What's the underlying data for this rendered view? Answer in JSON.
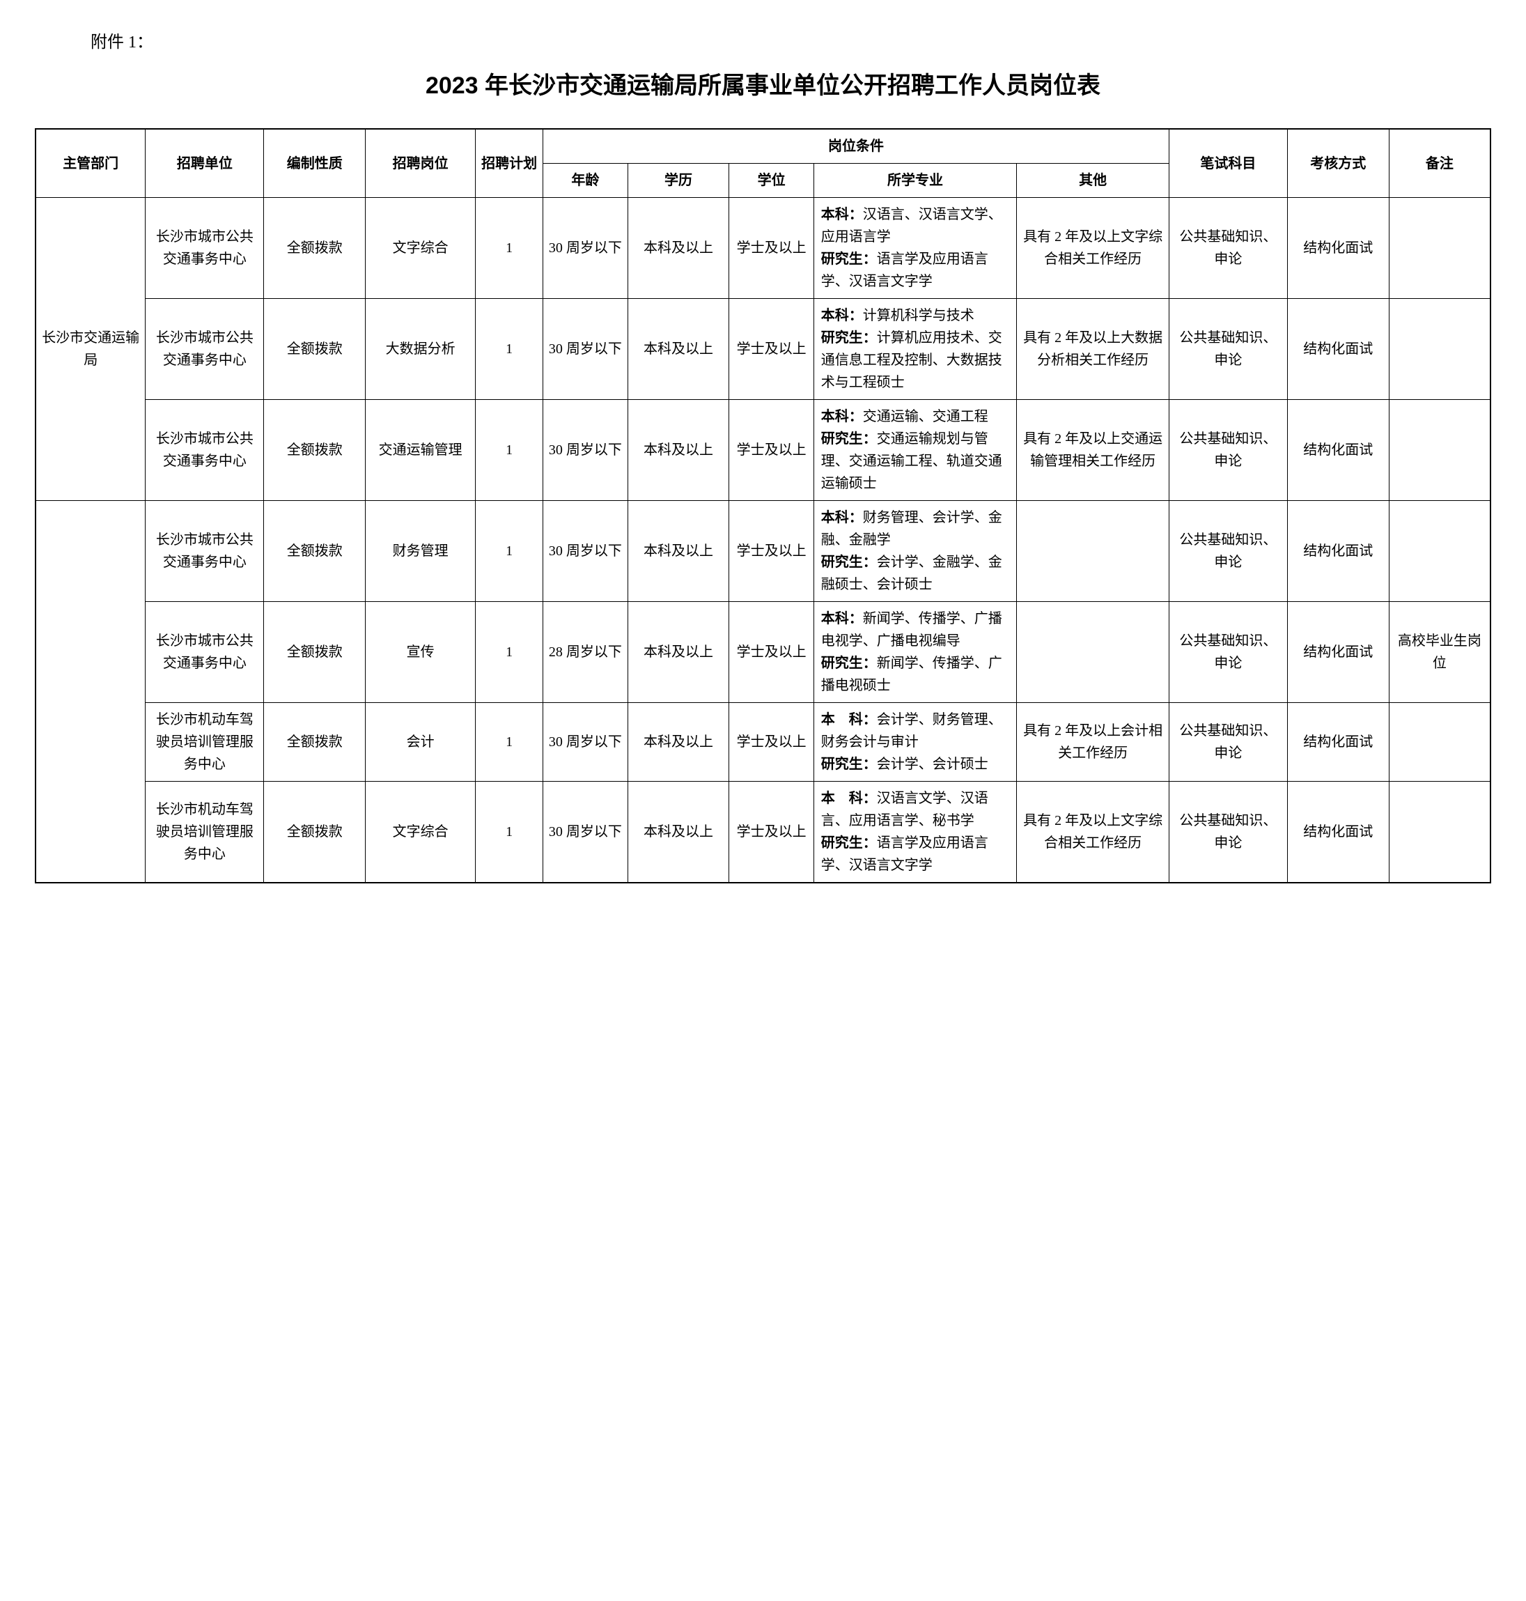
{
  "attachment_label": "附件 1：",
  "title": "2023 年长沙市交通运输局所属事业单位公开招聘工作人员岗位表",
  "headers": {
    "dept": "主管部门",
    "unit": "招聘单位",
    "nature": "编制性质",
    "position": "招聘岗位",
    "plan": "招聘计划",
    "conditions": "岗位条件",
    "age": "年龄",
    "education": "学历",
    "degree": "学位",
    "major": "所学专业",
    "other": "其他",
    "exam": "笔试科目",
    "method": "考核方式",
    "note": "备注"
  },
  "dept_name": "长沙市交通运输局",
  "rows": [
    {
      "unit": "长沙市城市公共交通事务中心",
      "nature": "全额拨款",
      "position": "文字综合",
      "plan": "1",
      "age": "30 周岁以下",
      "education": "本科及以上",
      "degree": "学士及以上",
      "major_bk_label": "本科：",
      "major_bk": "汉语言、汉语言文学、应用语言学",
      "major_yjs_label": "研究生：",
      "major_yjs": "语言学及应用语言学、汉语言文字学",
      "other": "具有 2 年及以上文字综合相关工作经历",
      "exam": "公共基础知识、申论",
      "method": "结构化面试",
      "note": ""
    },
    {
      "unit": "长沙市城市公共交通事务中心",
      "nature": "全额拨款",
      "position": "大数据分析",
      "plan": "1",
      "age": "30 周岁以下",
      "education": "本科及以上",
      "degree": "学士及以上",
      "major_bk_label": "本科：",
      "major_bk": "计算机科学与技术",
      "major_yjs_label": "研究生：",
      "major_yjs": "计算机应用技术、交通信息工程及控制、大数据技术与工程硕士",
      "other": "具有 2 年及以上大数据分析相关工作经历",
      "exam": "公共基础知识、申论",
      "method": "结构化面试",
      "note": ""
    },
    {
      "unit": "长沙市城市公共交通事务中心",
      "nature": "全额拨款",
      "position": "交通运输管理",
      "plan": "1",
      "age": "30 周岁以下",
      "education": "本科及以上",
      "degree": "学士及以上",
      "major_bk_label": "本科：",
      "major_bk": "交通运输、交通工程",
      "major_yjs_label": "研究生：",
      "major_yjs": "交通运输规划与管理、交通运输工程、轨道交通运输硕士",
      "other": "具有 2 年及以上交通运输管理相关工作经历",
      "exam": "公共基础知识、申论",
      "method": "结构化面试",
      "note": ""
    },
    {
      "unit": "长沙市城市公共交通事务中心",
      "nature": "全额拨款",
      "position": "财务管理",
      "plan": "1",
      "age": "30 周岁以下",
      "education": "本科及以上",
      "degree": "学士及以上",
      "major_bk_label": "本科：",
      "major_bk": "财务管理、会计学、金融、金融学",
      "major_yjs_label": "研究生：",
      "major_yjs": "会计学、金融学、金融硕士、会计硕士",
      "other": "",
      "exam": "公共基础知识、申论",
      "method": "结构化面试",
      "note": ""
    },
    {
      "unit": "长沙市城市公共交通事务中心",
      "nature": "全额拨款",
      "position": "宣传",
      "plan": "1",
      "age": "28 周岁以下",
      "education": "本科及以上",
      "degree": "学士及以上",
      "major_bk_label": "本科：",
      "major_bk": "新闻学、传播学、广播电视学、广播电视编导",
      "major_yjs_label": "研究生：",
      "major_yjs": "新闻学、传播学、广播电视硕士",
      "other": "",
      "exam": "公共基础知识、申论",
      "method": "结构化面试",
      "note": "高校毕业生岗位"
    },
    {
      "unit": "长沙市机动车驾驶员培训管理服务中心",
      "nature": "全额拨款",
      "position": "会计",
      "plan": "1",
      "age": "30 周岁以下",
      "education": "本科及以上",
      "degree": "学士及以上",
      "major_bk_label": "本　科：",
      "major_bk": "会计学、财务管理、财务会计与审计",
      "major_yjs_label": "研究生：",
      "major_yjs": "会计学、会计硕士",
      "other": "具有 2 年及以上会计相关工作经历",
      "exam": "公共基础知识、申论",
      "method": "结构化面试",
      "note": ""
    },
    {
      "unit": "长沙市机动车驾驶员培训管理服务中心",
      "nature": "全额拨款",
      "position": "文字综合",
      "plan": "1",
      "age": "30 周岁以下",
      "education": "本科及以上",
      "degree": "学士及以上",
      "major_bk_label": "本　科：",
      "major_bk": "汉语言文学、汉语言、应用语言学、秘书学",
      "major_yjs_label": "研究生：",
      "major_yjs": "语言学及应用语言学、汉语言文字学",
      "other": "具有 2 年及以上文字综合相关工作经历",
      "exam": "公共基础知识、申论",
      "method": "结构化面试",
      "note": ""
    }
  ]
}
